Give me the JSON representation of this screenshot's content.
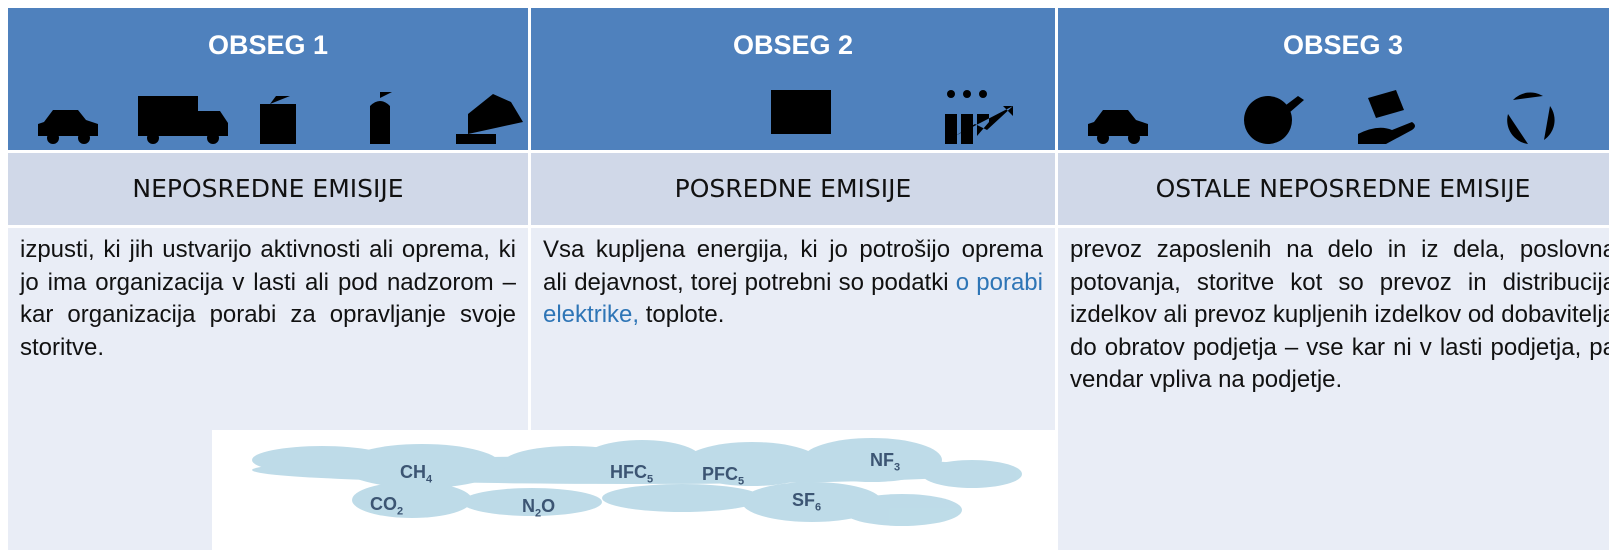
{
  "columns": [
    {
      "title": "OBSEG 1",
      "subtitle": "NEPOSREDNE EMISIJE",
      "text": "izpusti, ki jih ustvarijo aktivnosti ali oprema, ki jo ima organizacija v lasti ali pod nadzorom – kar organizacija porabi za opravljanje svoje storitve."
    },
    {
      "title": "OBSEG 2",
      "subtitle": "POSREDNE EMISIJE",
      "text": "Vsa kupljena energija, ki jo potrošijo oprema ali dejavnost, torej potrebni so podatki ",
      "link": "o porabi elektrike,",
      "text_after": " toplote."
    },
    {
      "title": "OBSEG 3",
      "subtitle": "OSTALE NEPOSREDNE EMISIJE",
      "text": "prevoz zaposlenih na delo in iz dela, poslovna potovanja, storitve kot so prevoz in distribucija izdelkov ali prevoz kupljenih izdelkov od dobavitelja do obratov podjetja – vse kar ni v lasti podjetja, pa vendar vpliva na podjetje."
    }
  ],
  "gases": [
    {
      "base": "CH",
      "sub": "4"
    },
    {
      "base": "CO",
      "sub": "2"
    },
    {
      "base": "N",
      "sub": "2",
      "tail": "O"
    },
    {
      "base": "HFC",
      "sub": "5"
    },
    {
      "base": "PFC",
      "sub": "5"
    },
    {
      "base": "SF",
      "sub": "6"
    },
    {
      "base": "NF",
      "sub": "3"
    }
  ]
}
